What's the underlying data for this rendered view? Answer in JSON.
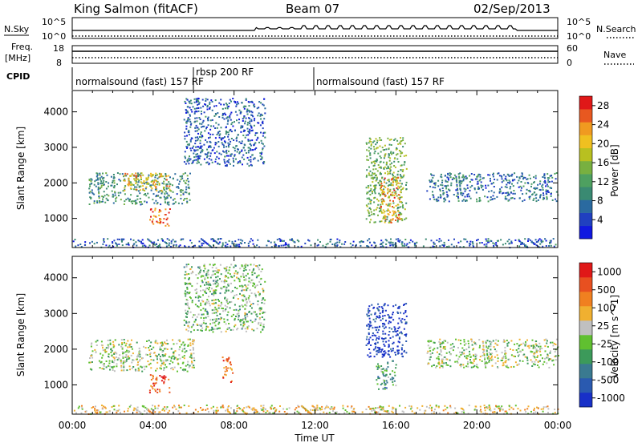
{
  "header": {
    "station": "King Salmon (fitACF)",
    "beam": "Beam 07",
    "date": "02/Sep/2013"
  },
  "top_panel": {
    "left_label": "N.Sky",
    "right_label": "N.Search",
    "left_ticks": [
      "10^5",
      "10^0"
    ],
    "right_ticks": [
      "10^5",
      "10^0"
    ]
  },
  "freq_panel": {
    "left_label_top": "Freq.",
    "left_label_bottom": "[MHz]",
    "left_ticks": [
      "18",
      "8"
    ],
    "right_label": "Nave",
    "right_ticks": [
      "60",
      "0"
    ]
  },
  "cpid": {
    "label": "CPID",
    "segments": [
      "normalsound (fast) 157 RF",
      "rbsp 200 RF",
      "normalsound (fast) 157 RF"
    ]
  },
  "chart_data": [
    {
      "type": "heatmap",
      "title": "",
      "xlabel": "Time UT",
      "ylabel": "Slant Range [km]",
      "x_ticks": [
        "00:00",
        "04:00",
        "08:00",
        "12:00",
        "16:00",
        "20:00",
        "00:00"
      ],
      "xlim_hours": [
        0,
        24
      ],
      "y_ticks": [
        1000,
        2000,
        3000,
        4000
      ],
      "ylim": [
        180,
        4600
      ],
      "colorbar": {
        "label": "Power [dB]",
        "ticks": [
          "4",
          "8",
          "12",
          "16",
          "20",
          "24",
          "28"
        ],
        "range": [
          0,
          30
        ],
        "colors": [
          "#1018e0",
          "#2040c0",
          "#2a6aa0",
          "#3a8a72",
          "#4ea060",
          "#78b040",
          "#b8c020",
          "#f0c020",
          "#f09a20",
          "#e85820",
          "#e01818"
        ]
      },
      "regions": [
        {
          "name": "loop-arc",
          "t": [
            0.8,
            5.8
          ],
          "r": [
            1400,
            2300
          ],
          "level": 0.35
        },
        {
          "name": "arc-core",
          "t": [
            2.5,
            4.8
          ],
          "r": [
            1800,
            2300
          ],
          "level": 0.7
        },
        {
          "name": "low-patch",
          "t": [
            3.8,
            4.8
          ],
          "r": [
            800,
            1300
          ],
          "level": 0.85
        },
        {
          "name": "upper-scatter",
          "t": [
            5.5,
            9.5
          ],
          "r": [
            2500,
            4400
          ],
          "level": 0.2
        },
        {
          "name": "noon-cluster",
          "t": [
            14.5,
            16.5
          ],
          "r": [
            900,
            3300
          ],
          "level": 0.45
        },
        {
          "name": "noon-core",
          "t": [
            15.2,
            16.2
          ],
          "r": [
            900,
            2200
          ],
          "level": 0.75
        },
        {
          "name": "evening-band",
          "t": [
            17.5,
            24.0
          ],
          "r": [
            1500,
            2300
          ],
          "level": 0.25
        },
        {
          "name": "near-range",
          "t": [
            0.0,
            24.0
          ],
          "r": [
            200,
            450
          ],
          "level": 0.2
        }
      ]
    },
    {
      "type": "heatmap",
      "title": "",
      "xlabel": "Time UT",
      "ylabel": "Slant Range [km]",
      "x_ticks": [
        "00:00",
        "04:00",
        "08:00",
        "12:00",
        "16:00",
        "20:00",
        "00:00"
      ],
      "xlim_hours": [
        0,
        24
      ],
      "y_ticks": [
        1000,
        2000,
        3000,
        4000
      ],
      "ylim": [
        180,
        4600
      ],
      "colorbar": {
        "label": "Velocity [m s^-1]",
        "ticks": [
          "1000",
          "500",
          "100",
          "25",
          "-25",
          "-100",
          "-500",
          "-1000"
        ],
        "range": [
          -1000,
          1000
        ],
        "colors": [
          "#1830c8",
          "#2a5ab0",
          "#3a7a90",
          "#3c9a5a",
          "#60c030",
          "#c0c0c0",
          "#f0b030",
          "#f08020",
          "#e85020",
          "#e01818"
        ]
      },
      "regions": [
        {
          "name": "loop-arc",
          "t": [
            0.8,
            6.0
          ],
          "r": [
            1400,
            2300
          ],
          "level": 0.5
        },
        {
          "name": "low-patch",
          "t": [
            3.8,
            4.8
          ],
          "r": [
            800,
            1300
          ],
          "level": 0.85
        },
        {
          "name": "late-patch",
          "t": [
            7.4,
            7.9
          ],
          "r": [
            1100,
            1800
          ],
          "level": 0.8
        },
        {
          "name": "upper-scatter",
          "t": [
            5.5,
            9.5
          ],
          "r": [
            2500,
            4400
          ],
          "level": 0.45
        },
        {
          "name": "noon-blue",
          "t": [
            14.5,
            16.5
          ],
          "r": [
            1800,
            3300
          ],
          "level": 0.05
        },
        {
          "name": "noon-green",
          "t": [
            15.0,
            16.0
          ],
          "r": [
            900,
            1700
          ],
          "level": 0.35
        },
        {
          "name": "evening-band",
          "t": [
            17.5,
            24.0
          ],
          "r": [
            1500,
            2300
          ],
          "level": 0.5
        },
        {
          "name": "near-range",
          "t": [
            0.0,
            24.0
          ],
          "r": [
            200,
            450
          ],
          "level": 0.6
        }
      ]
    }
  ],
  "x_axis_label": "Time UT"
}
